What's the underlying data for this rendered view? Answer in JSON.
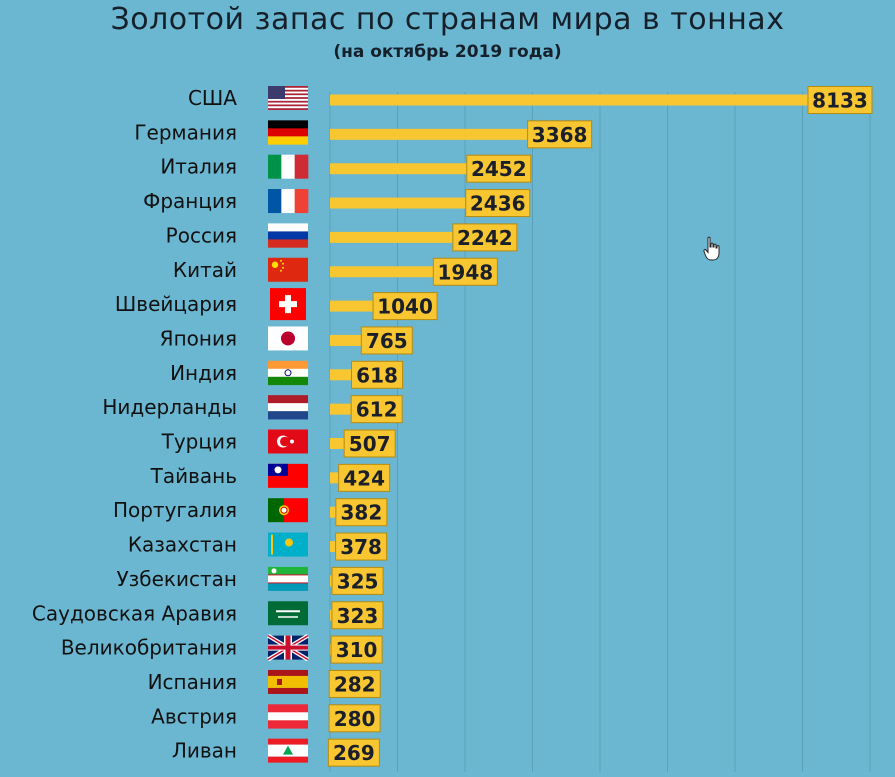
{
  "chart_data": {
    "type": "bar",
    "orientation": "horizontal",
    "title": "Золотой запас по странам мира в тоннах",
    "subtitle": "(на октябрь 2019 года)",
    "xlabel": "",
    "ylabel": "",
    "xlim": [
      0,
      8133
    ],
    "grid": true,
    "bar_color": "#f7c631",
    "label_box_color": "#f7c631",
    "categories": [
      "США",
      "Германия",
      "Италия",
      "Франция",
      "Россия",
      "Китай",
      "Швейцария",
      "Япония",
      "Индия",
      "Нидерланды",
      "Турция",
      "Тайвань",
      "Португалия",
      "Казахстан",
      "Узбекистан",
      "Саудовская Аравия",
      "Великобритания",
      "Испания",
      "Австрия",
      "Ливан"
    ],
    "values": [
      8133,
      3368,
      2452,
      2436,
      2242,
      1948,
      1040,
      765,
      618,
      612,
      507,
      424,
      382,
      378,
      325,
      323,
      310,
      282,
      280,
      269
    ],
    "flags": [
      "us-flag",
      "germany-flag",
      "italy-flag",
      "france-flag",
      "russia-flag",
      "china-flag",
      "switzerland-flag",
      "japan-flag",
      "india-flag",
      "netherlands-flag",
      "turkey-flag",
      "taiwan-flag",
      "portugal-flag",
      "kazakhstan-flag",
      "uzbekistan-flag",
      "saudi-arabia-flag",
      "uk-flag",
      "spain-flag",
      "austria-flag",
      "lebanon-flag"
    ]
  }
}
